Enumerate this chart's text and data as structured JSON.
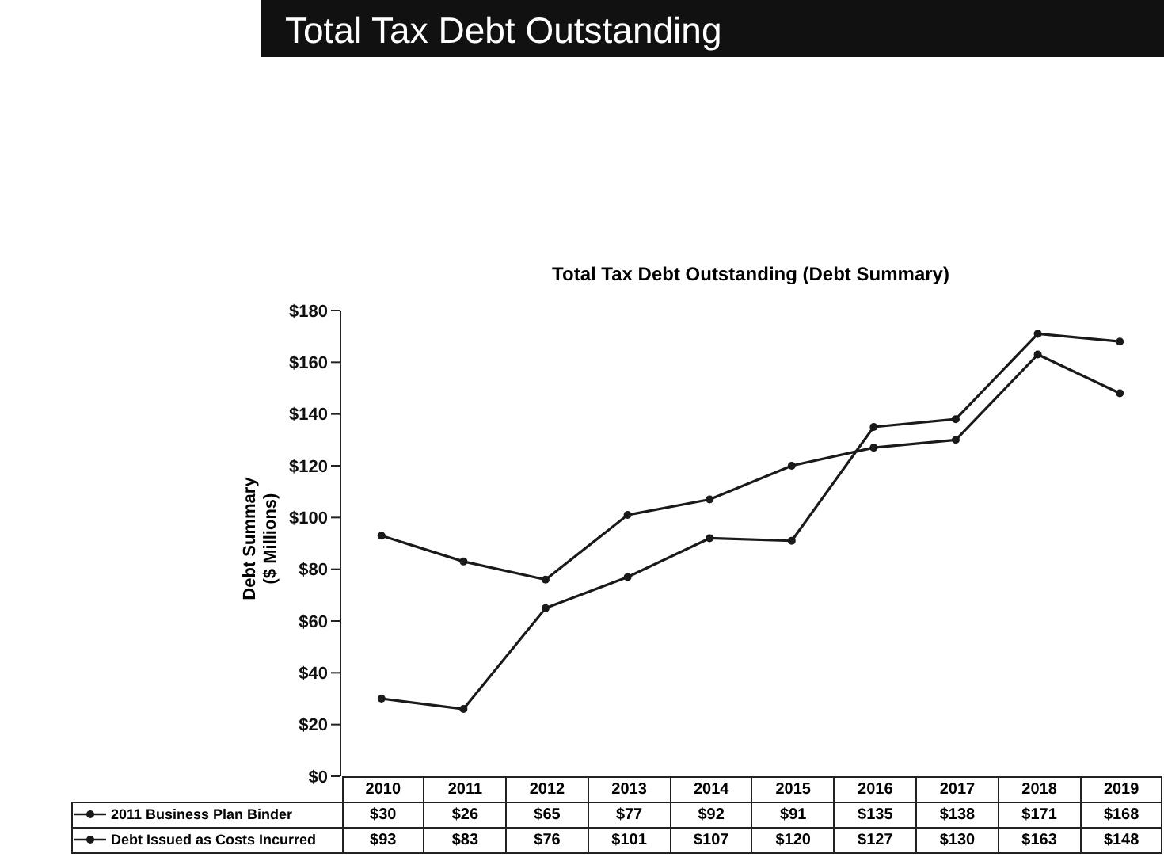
{
  "chart_data": {
    "type": "line",
    "title": "Total Tax Debt Outstanding",
    "subtitle": "Total Tax Debt Outstanding (Debt Summary)",
    "ylabel": "Debt Summary ($ Millions)",
    "categories": [
      "2010",
      "2011",
      "2012",
      "2013",
      "2014",
      "2015",
      "2016",
      "2017",
      "2018",
      "2019"
    ],
    "series": [
      {
        "name": "2011 Business Plan Binder",
        "color": "#1a1a1a",
        "values": [
          30,
          26,
          65,
          77,
          92,
          91,
          135,
          138,
          171,
          168
        ],
        "value_labels": [
          "$30",
          "$26",
          "$65",
          "$77",
          "$92",
          "$91",
          "$135",
          "$138",
          "$171",
          "$168"
        ]
      },
      {
        "name": "Debt Issued as Costs Incurred",
        "color": "#1a1a1a",
        "values": [
          93,
          83,
          76,
          101,
          107,
          120,
          127,
          130,
          163,
          148
        ],
        "value_labels": [
          "$93",
          "$83",
          "$76",
          "$101",
          "$107",
          "$120",
          "$127",
          "$130",
          "$163",
          "$148"
        ]
      }
    ],
    "ylim": [
      0,
      180
    ],
    "yticks": [
      {
        "value": 0,
        "label": "$0"
      },
      {
        "value": 20,
        "label": "$20"
      },
      {
        "value": 40,
        "label": "$40"
      },
      {
        "value": 60,
        "label": "$60"
      },
      {
        "value": 80,
        "label": "$80"
      },
      {
        "value": 100,
        "label": "$100"
      },
      {
        "value": 120,
        "label": "$120"
      },
      {
        "value": 140,
        "label": "$140"
      },
      {
        "value": 160,
        "label": "$160"
      },
      {
        "value": 180,
        "label": "$180"
      }
    ],
    "grid": false,
    "legend": "bottom",
    "marker": "circle",
    "line_style": "solid"
  }
}
